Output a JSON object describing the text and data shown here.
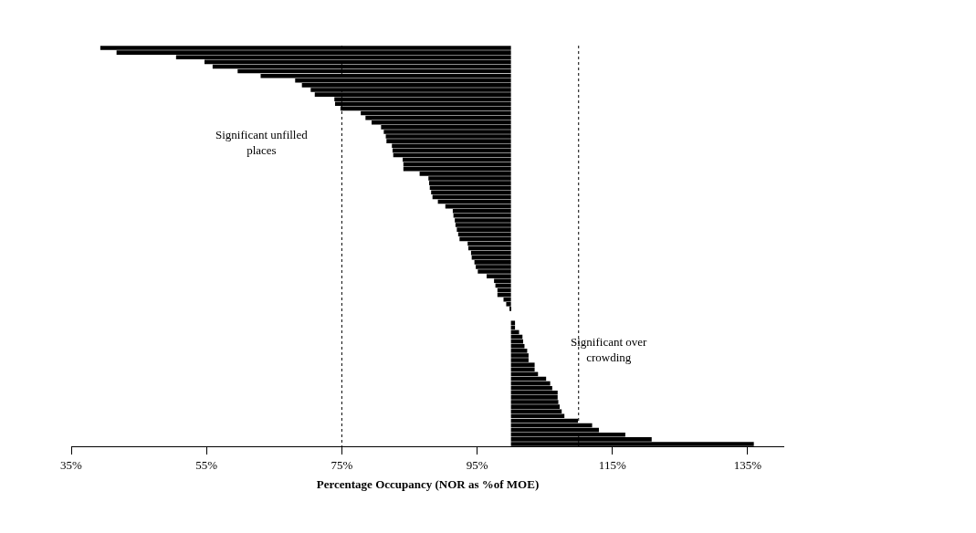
{
  "chart_data": {
    "type": "bar",
    "orientation": "horizontal",
    "xlabel": "Percentage Occupancy (NOR as %of MOE)",
    "categories": [
      null,
      null,
      null,
      null,
      null,
      null,
      null,
      null,
      null,
      null,
      null,
      null,
      null,
      null,
      null,
      null,
      null,
      null,
      null,
      null,
      null,
      null,
      null,
      null,
      null,
      null,
      null,
      null,
      null,
      null,
      null,
      null,
      null,
      null,
      null,
      null,
      null,
      null,
      null,
      null,
      null,
      null,
      null,
      null,
      null,
      null,
      null,
      null,
      null,
      null,
      null,
      null,
      null,
      null,
      null,
      null,
      null,
      null,
      null,
      null,
      null,
      null,
      null,
      null,
      null,
      null,
      null,
      null,
      null,
      null,
      null,
      null,
      null,
      null,
      null,
      null,
      null,
      null,
      null,
      null,
      null,
      null,
      null,
      null,
      null,
      null
    ],
    "base": [
      100,
      100,
      100,
      100,
      100,
      100,
      100,
      100,
      100,
      100,
      100,
      100,
      100,
      100,
      100,
      100,
      100,
      100,
      100,
      100,
      100,
      100,
      100,
      100,
      100,
      100,
      100,
      100,
      100,
      100,
      100,
      100,
      100,
      100,
      100,
      100,
      100,
      100,
      100,
      100,
      100,
      100,
      100,
      100,
      100,
      100,
      100,
      100,
      100,
      100,
      100,
      100,
      100,
      100,
      100,
      100,
      100,
      null,
      null,
      100,
      100,
      100,
      100,
      100,
      100,
      100,
      100,
      100,
      100,
      100,
      100,
      100,
      100,
      100,
      100,
      100,
      100,
      100,
      100,
      100,
      100,
      100,
      100,
      100,
      100,
      100
    ],
    "values": [
      -60.7,
      -58.3,
      -49.5,
      -45.3,
      -44.1,
      -40.4,
      -37.0,
      -31.9,
      -30.9,
      -29.6,
      -29.0,
      -26.1,
      -26.0,
      -25.2,
      -22.2,
      -21.5,
      -20.6,
      -19.2,
      -18.8,
      -18.5,
      -18.4,
      -17.6,
      -17.5,
      -17.4,
      -16.0,
      -15.9,
      -15.9,
      -13.5,
      -12.2,
      -12.1,
      -12.0,
      -11.8,
      -11.6,
      -10.8,
      -9.7,
      -8.6,
      -8.5,
      -8.3,
      -8.2,
      -8.0,
      -7.8,
      -7.6,
      -6.4,
      -6.3,
      -5.9,
      -5.8,
      -5.4,
      -5.2,
      -4.9,
      -3.6,
      -2.5,
      -2.3,
      -2.0,
      -2.0,
      -1.1,
      -0.7,
      -0.2,
      null,
      null,
      0.6,
      0.6,
      1.2,
      1.7,
      1.8,
      2.0,
      2.4,
      2.6,
      2.6,
      3.5,
      3.5,
      4.0,
      5.2,
      5.8,
      6.1,
      6.9,
      6.9,
      7.0,
      7.2,
      7.5,
      7.9,
      9.9,
      12.0,
      13.0,
      16.9,
      20.8,
      35.9
    ],
    "color": "#000000",
    "xlim": [
      35,
      140.4
    ],
    "xticks": [
      {
        "value": 35,
        "label": "35%"
      },
      {
        "value": 55,
        "label": "55%"
      },
      {
        "value": 75,
        "label": "75%"
      },
      {
        "value": 95,
        "label": "95%"
      },
      {
        "value": 115,
        "label": "115%"
      },
      {
        "value": 135,
        "label": "135%"
      }
    ],
    "tick_labels": "x",
    "grid": false,
    "legend": false,
    "ref_lines": [
      {
        "axis": "x",
        "value": 75,
        "line_style": "dotted",
        "color": "#000000"
      },
      {
        "axis": "x",
        "value": 110,
        "line_style": "dotted",
        "color": "#000000"
      }
    ],
    "annotations": [
      "Significant unfilled\nplaces",
      "Significant over\ncrowding"
    ]
  }
}
